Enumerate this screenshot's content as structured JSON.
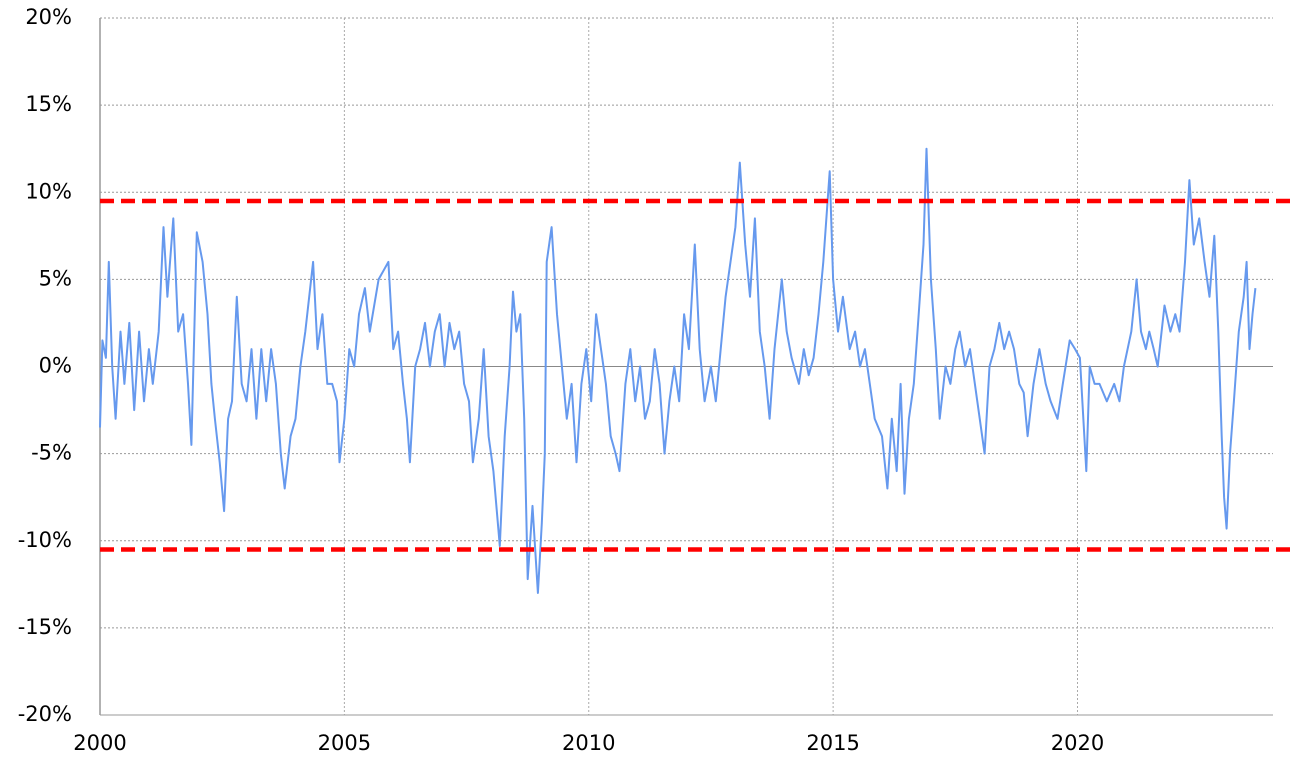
{
  "chart_data": {
    "type": "line",
    "x": [
      2000.0,
      2000.05,
      2000.12,
      2000.18,
      2000.25,
      2000.32,
      2000.42,
      2000.5,
      2000.6,
      2000.7,
      2000.8,
      2000.9,
      2001.0,
      2001.08,
      2001.2,
      2001.3,
      2001.38,
      2001.5,
      2001.6,
      2001.7,
      2001.8,
      2001.87,
      2001.93,
      2001.98,
      2002.1,
      2002.2,
      2002.28,
      2002.35,
      2002.45,
      2002.54,
      2002.62,
      2002.7,
      2002.8,
      2002.9,
      2003.0,
      2003.1,
      2003.2,
      2003.3,
      2003.4,
      2003.5,
      2003.6,
      2003.7,
      2003.78,
      2003.9,
      2004.0,
      2004.1,
      2004.2,
      2004.36,
      2004.45,
      2004.55,
      2004.65,
      2004.75,
      2004.85,
      2004.9,
      2005.0,
      2005.1,
      2005.2,
      2005.3,
      2005.42,
      2005.52,
      2005.7,
      2005.9,
      2006.0,
      2006.1,
      2006.2,
      2006.28,
      2006.34,
      2006.45,
      2006.55,
      2006.65,
      2006.75,
      2006.85,
      2006.95,
      2007.05,
      2007.15,
      2007.25,
      2007.35,
      2007.45,
      2007.55,
      2007.63,
      2007.75,
      2007.85,
      2007.95,
      2008.05,
      2008.18,
      2008.28,
      2008.38,
      2008.45,
      2008.52,
      2008.6,
      2008.68,
      2008.75,
      2008.85,
      2008.96,
      2009.04,
      2009.1,
      2009.14,
      2009.24,
      2009.35,
      2009.45,
      2009.55,
      2009.65,
      2009.75,
      2009.85,
      2009.95,
      2010.05,
      2010.15,
      2010.25,
      2010.35,
      2010.45,
      2010.55,
      2010.63,
      2010.75,
      2010.85,
      2010.95,
      2011.05,
      2011.15,
      2011.25,
      2011.35,
      2011.45,
      2011.55,
      2011.65,
      2011.75,
      2011.85,
      2011.95,
      2012.05,
      2012.17,
      2012.27,
      2012.37,
      2012.5,
      2012.6,
      2012.7,
      2012.8,
      2012.9,
      2013.0,
      2013.09,
      2013.2,
      2013.3,
      2013.4,
      2013.5,
      2013.6,
      2013.7,
      2013.8,
      2013.95,
      2014.05,
      2014.15,
      2014.3,
      2014.4,
      2014.5,
      2014.6,
      2014.7,
      2014.8,
      2014.93,
      2015.0,
      2015.1,
      2015.2,
      2015.34,
      2015.45,
      2015.55,
      2015.65,
      2015.75,
      2015.85,
      2016.0,
      2016.11,
      2016.2,
      2016.3,
      2016.38,
      2016.46,
      2016.55,
      2016.65,
      2016.75,
      2016.85,
      2016.91,
      2017.0,
      2017.1,
      2017.18,
      2017.3,
      2017.4,
      2017.5,
      2017.59,
      2017.7,
      2017.8,
      2017.95,
      2018.1,
      2018.2,
      2018.3,
      2018.4,
      2018.5,
      2018.6,
      2018.7,
      2018.81,
      2018.9,
      2018.98,
      2019.1,
      2019.22,
      2019.35,
      2019.45,
      2019.59,
      2019.7,
      2019.84,
      2019.95,
      2020.05,
      2020.18,
      2020.25,
      2020.35,
      2020.45,
      2020.6,
      2020.75,
      2020.86,
      2020.95,
      2021.1,
      2021.21,
      2021.3,
      2021.4,
      2021.47,
      2021.56,
      2021.64,
      2021.78,
      2021.9,
      2022.0,
      2022.09,
      2022.2,
      2022.29,
      2022.38,
      2022.49,
      2022.6,
      2022.7,
      2022.8,
      2022.88,
      2022.95,
      2023.0,
      2023.05,
      2023.12,
      2023.2,
      2023.3,
      2023.4,
      2023.46,
      2023.52,
      2023.58,
      2023.64
    ],
    "series": [
      {
        "color": "#6699ee",
        "values": [
          -3.5,
          1.5,
          0.5,
          6,
          0,
          -3,
          2,
          -1,
          2.5,
          -2.5,
          2,
          -2,
          1,
          -1,
          2,
          8,
          4,
          8.5,
          2,
          3,
          -1,
          -4.5,
          2,
          7.7,
          6,
          3,
          -1,
          -3,
          -5.5,
          -8.3,
          -3,
          -2,
          4,
          -1,
          -2,
          1,
          -3,
          1,
          -2,
          1,
          -1,
          -5,
          -7,
          -4,
          -3,
          0,
          2,
          6,
          1,
          3,
          -1,
          -1,
          -2,
          -5.5,
          -3,
          1,
          0,
          3,
          4.5,
          2,
          5,
          6,
          1,
          2,
          -1,
          -3,
          -5.5,
          0,
          1,
          2.5,
          0,
          2,
          3,
          0,
          2.5,
          1,
          2,
          -1,
          -2,
          -5.5,
          -3,
          1,
          -4,
          -6,
          -10.3,
          -4,
          0,
          4.3,
          2,
          3,
          -3,
          -12.2,
          -8,
          -13,
          -9,
          -5,
          6,
          8,
          3,
          0,
          -3,
          -1,
          -5.5,
          -1,
          1,
          -2,
          3,
          1,
          -1,
          -4,
          -5,
          -6,
          -1,
          1,
          -2,
          0,
          -3,
          -2,
          1,
          -1,
          -5,
          -2,
          0,
          -2,
          3,
          1,
          7,
          1,
          -2,
          0,
          -2,
          1,
          4,
          6,
          8,
          11.7,
          7,
          4,
          8.5,
          2,
          0,
          -3,
          1,
          5,
          2,
          0.5,
          -1,
          1,
          -0.5,
          0.5,
          3,
          6,
          11.2,
          5,
          2,
          4,
          1,
          2,
          0,
          1,
          -1,
          -3,
          -4,
          -7,
          -3,
          -6,
          -1,
          -7.3,
          -3,
          -1,
          3,
          7,
          12.5,
          5,
          1,
          -3,
          0,
          -1,
          1,
          2,
          0,
          1,
          -2,
          -5,
          0,
          1,
          2.5,
          1,
          2,
          1,
          -1,
          -1.5,
          -4,
          -1,
          1,
          -1,
          -2,
          -3,
          -1,
          1.5,
          1,
          0.5,
          -6,
          0,
          -1,
          -1,
          -2,
          -1,
          -2,
          0,
          2,
          5,
          2,
          1,
          2,
          1,
          0,
          3.5,
          2,
          3,
          2,
          6,
          10.7,
          7,
          8.5,
          6,
          4,
          7.5,
          2,
          -4,
          -7.5,
          -9.3,
          -5,
          -2,
          2,
          4,
          6,
          1,
          3,
          4.5
        ]
      }
    ],
    "reference_lines": [
      {
        "value": 9.5,
        "color": "#ff0000"
      },
      {
        "value": -10.5,
        "color": "#ff0000"
      }
    ],
    "xlim": [
      2000,
      2024
    ],
    "xticks": [
      2000,
      2005,
      2010,
      2015,
      2020
    ],
    "ylim": [
      -20,
      20
    ],
    "yticks": [
      {
        "value": -20,
        "label": "-20%"
      },
      {
        "value": -15,
        "label": "-15%"
      },
      {
        "value": -10,
        "label": "-10%"
      },
      {
        "value": -5,
        "label": "-5%"
      },
      {
        "value": 0,
        "label": "0%"
      },
      {
        "value": 5,
        "label": "5%"
      },
      {
        "value": 10,
        "label": "10%"
      },
      {
        "value": 15,
        "label": "15%"
      },
      {
        "value": 20,
        "label": "20%"
      }
    ],
    "negative_tick_color": "#e00000",
    "grid": true
  }
}
